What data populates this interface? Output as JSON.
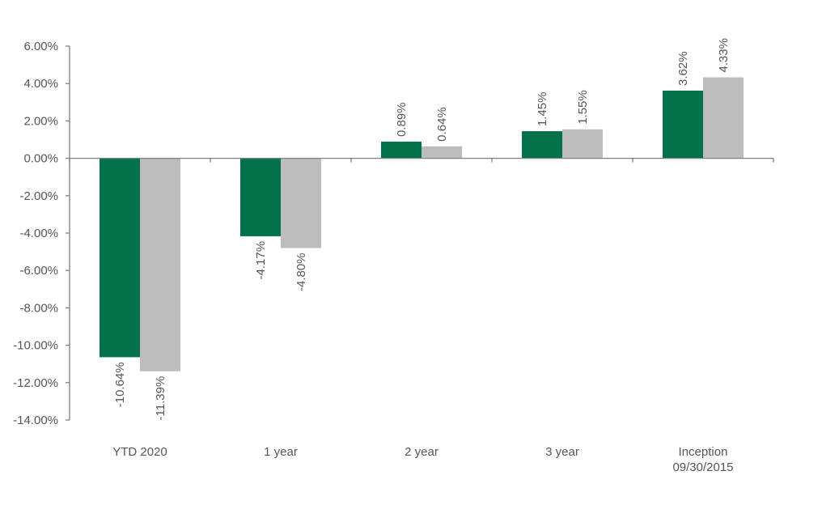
{
  "chart_data": {
    "type": "bar",
    "categories": [
      [
        "YTD 2020"
      ],
      [
        "1 year"
      ],
      [
        "2 year"
      ],
      [
        "3 year"
      ],
      [
        "Inception",
        "09/30/2015"
      ]
    ],
    "series": [
      {
        "values": [
          -10.64,
          -4.17,
          0.89,
          1.45,
          3.62
        ],
        "color": "#03714a"
      },
      {
        "values": [
          -11.39,
          -4.8,
          0.64,
          1.55,
          4.33
        ],
        "color": "#bdbdbd"
      }
    ],
    "data_labels": [
      [
        "-10.64%",
        "-4.17%",
        "0.89%",
        "1.45%",
        "3.62%"
      ],
      [
        "-11.39%",
        "-4.80%",
        "0.64%",
        "1.55%",
        "4.33%"
      ]
    ],
    "y_ticks": [
      6,
      4,
      2,
      0,
      -2,
      -4,
      -6,
      -8,
      -10,
      -12,
      -14
    ],
    "y_tick_labels": [
      "6.00%",
      "4.00%",
      "2.00%",
      "0.00%",
      "-2.00%",
      "-4.00%",
      "-6.00%",
      "-8.00%",
      "-10.00%",
      "-12.00%",
      "-14.00%"
    ],
    "ylim": [
      -14,
      6
    ],
    "grid": false,
    "legend": "none",
    "title": "",
    "xlabel": "",
    "ylabel": ""
  }
}
